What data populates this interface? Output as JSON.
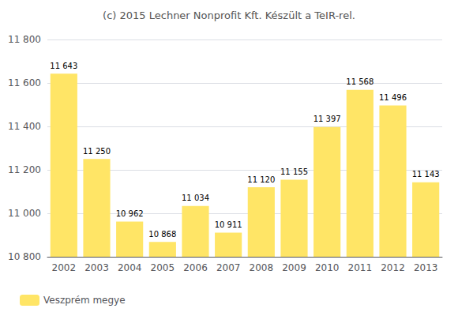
{
  "chart_data": {
    "type": "bar",
    "title": "(c) 2015 Lechner Nonprofit Kft. Készült a TeIR-rel.",
    "categories": [
      "2002",
      "2003",
      "2004",
      "2005",
      "2006",
      "2007",
      "2008",
      "2009",
      "2010",
      "2011",
      "2012",
      "2013"
    ],
    "series": [
      {
        "name": "Veszprém megye",
        "color": "#FFE566",
        "values": [
          11643,
          11250,
          10962,
          10868,
          11034,
          10911,
          11120,
          11155,
          11397,
          11568,
          11496,
          11143
        ],
        "value_labels": [
          "11 643",
          "11 250",
          "10 962",
          "10 868",
          "11 034",
          "10 911",
          "11 120",
          "11 155",
          "11 397",
          "11 568",
          "11 496",
          "11 143"
        ]
      }
    ],
    "ylim": [
      10800,
      11800
    ],
    "yticks": [
      {
        "value": 10800,
        "label": "10 800"
      },
      {
        "value": 11000,
        "label": "11 000"
      },
      {
        "value": 11200,
        "label": "11 200"
      },
      {
        "value": 11400,
        "label": "11 400"
      },
      {
        "value": 11600,
        "label": "11 600"
      },
      {
        "value": 11800,
        "label": "11 800"
      }
    ],
    "grid": true,
    "legend": "lower left",
    "data_labels": true
  }
}
